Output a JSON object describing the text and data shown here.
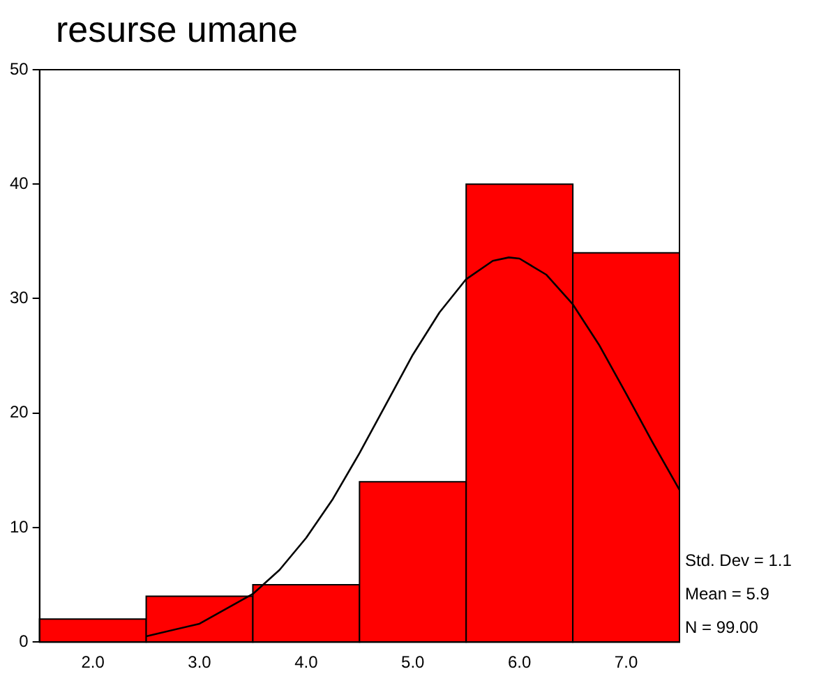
{
  "chart_data": {
    "type": "histogram",
    "title": "resurse umane",
    "bins": [
      1.5,
      2.5,
      3.5,
      4.5,
      5.5,
      6.5,
      7.5
    ],
    "values": [
      2,
      4,
      5,
      14,
      40,
      34
    ],
    "color": "#ff0000",
    "series": [
      {
        "type": "line",
        "color": "#000000",
        "x": [
          2.5,
          3.0,
          3.5,
          3.75,
          4.0,
          4.25,
          4.5,
          4.75,
          5.0,
          5.25,
          5.5,
          5.75,
          5.9,
          6.0,
          6.25,
          6.5,
          6.75,
          7.0,
          7.25,
          7.5
        ],
        "values": [
          0.5,
          1.6,
          4.2,
          6.3,
          9.1,
          12.5,
          16.5,
          20.8,
          25.1,
          28.8,
          31.7,
          33.3,
          33.6,
          33.5,
          32.1,
          29.5,
          25.9,
          21.7,
          17.4,
          13.3
        ]
      }
    ],
    "xlim": [
      1.5,
      7.5
    ],
    "xticks": [
      {
        "value": 2,
        "label": "2.0"
      },
      {
        "value": 3,
        "label": "3.0"
      },
      {
        "value": 4,
        "label": "4.0"
      },
      {
        "value": 5,
        "label": "5.0"
      },
      {
        "value": 6,
        "label": "6.0"
      },
      {
        "value": 7,
        "label": "7.0"
      }
    ],
    "ylim": [
      0,
      50
    ],
    "yticks": [
      0,
      10,
      20,
      30,
      40,
      50
    ],
    "grid": false,
    "legend": false,
    "annotations": [
      "Std. Dev = 1.1",
      "Mean = 5.9",
      "N = 99.00"
    ]
  }
}
